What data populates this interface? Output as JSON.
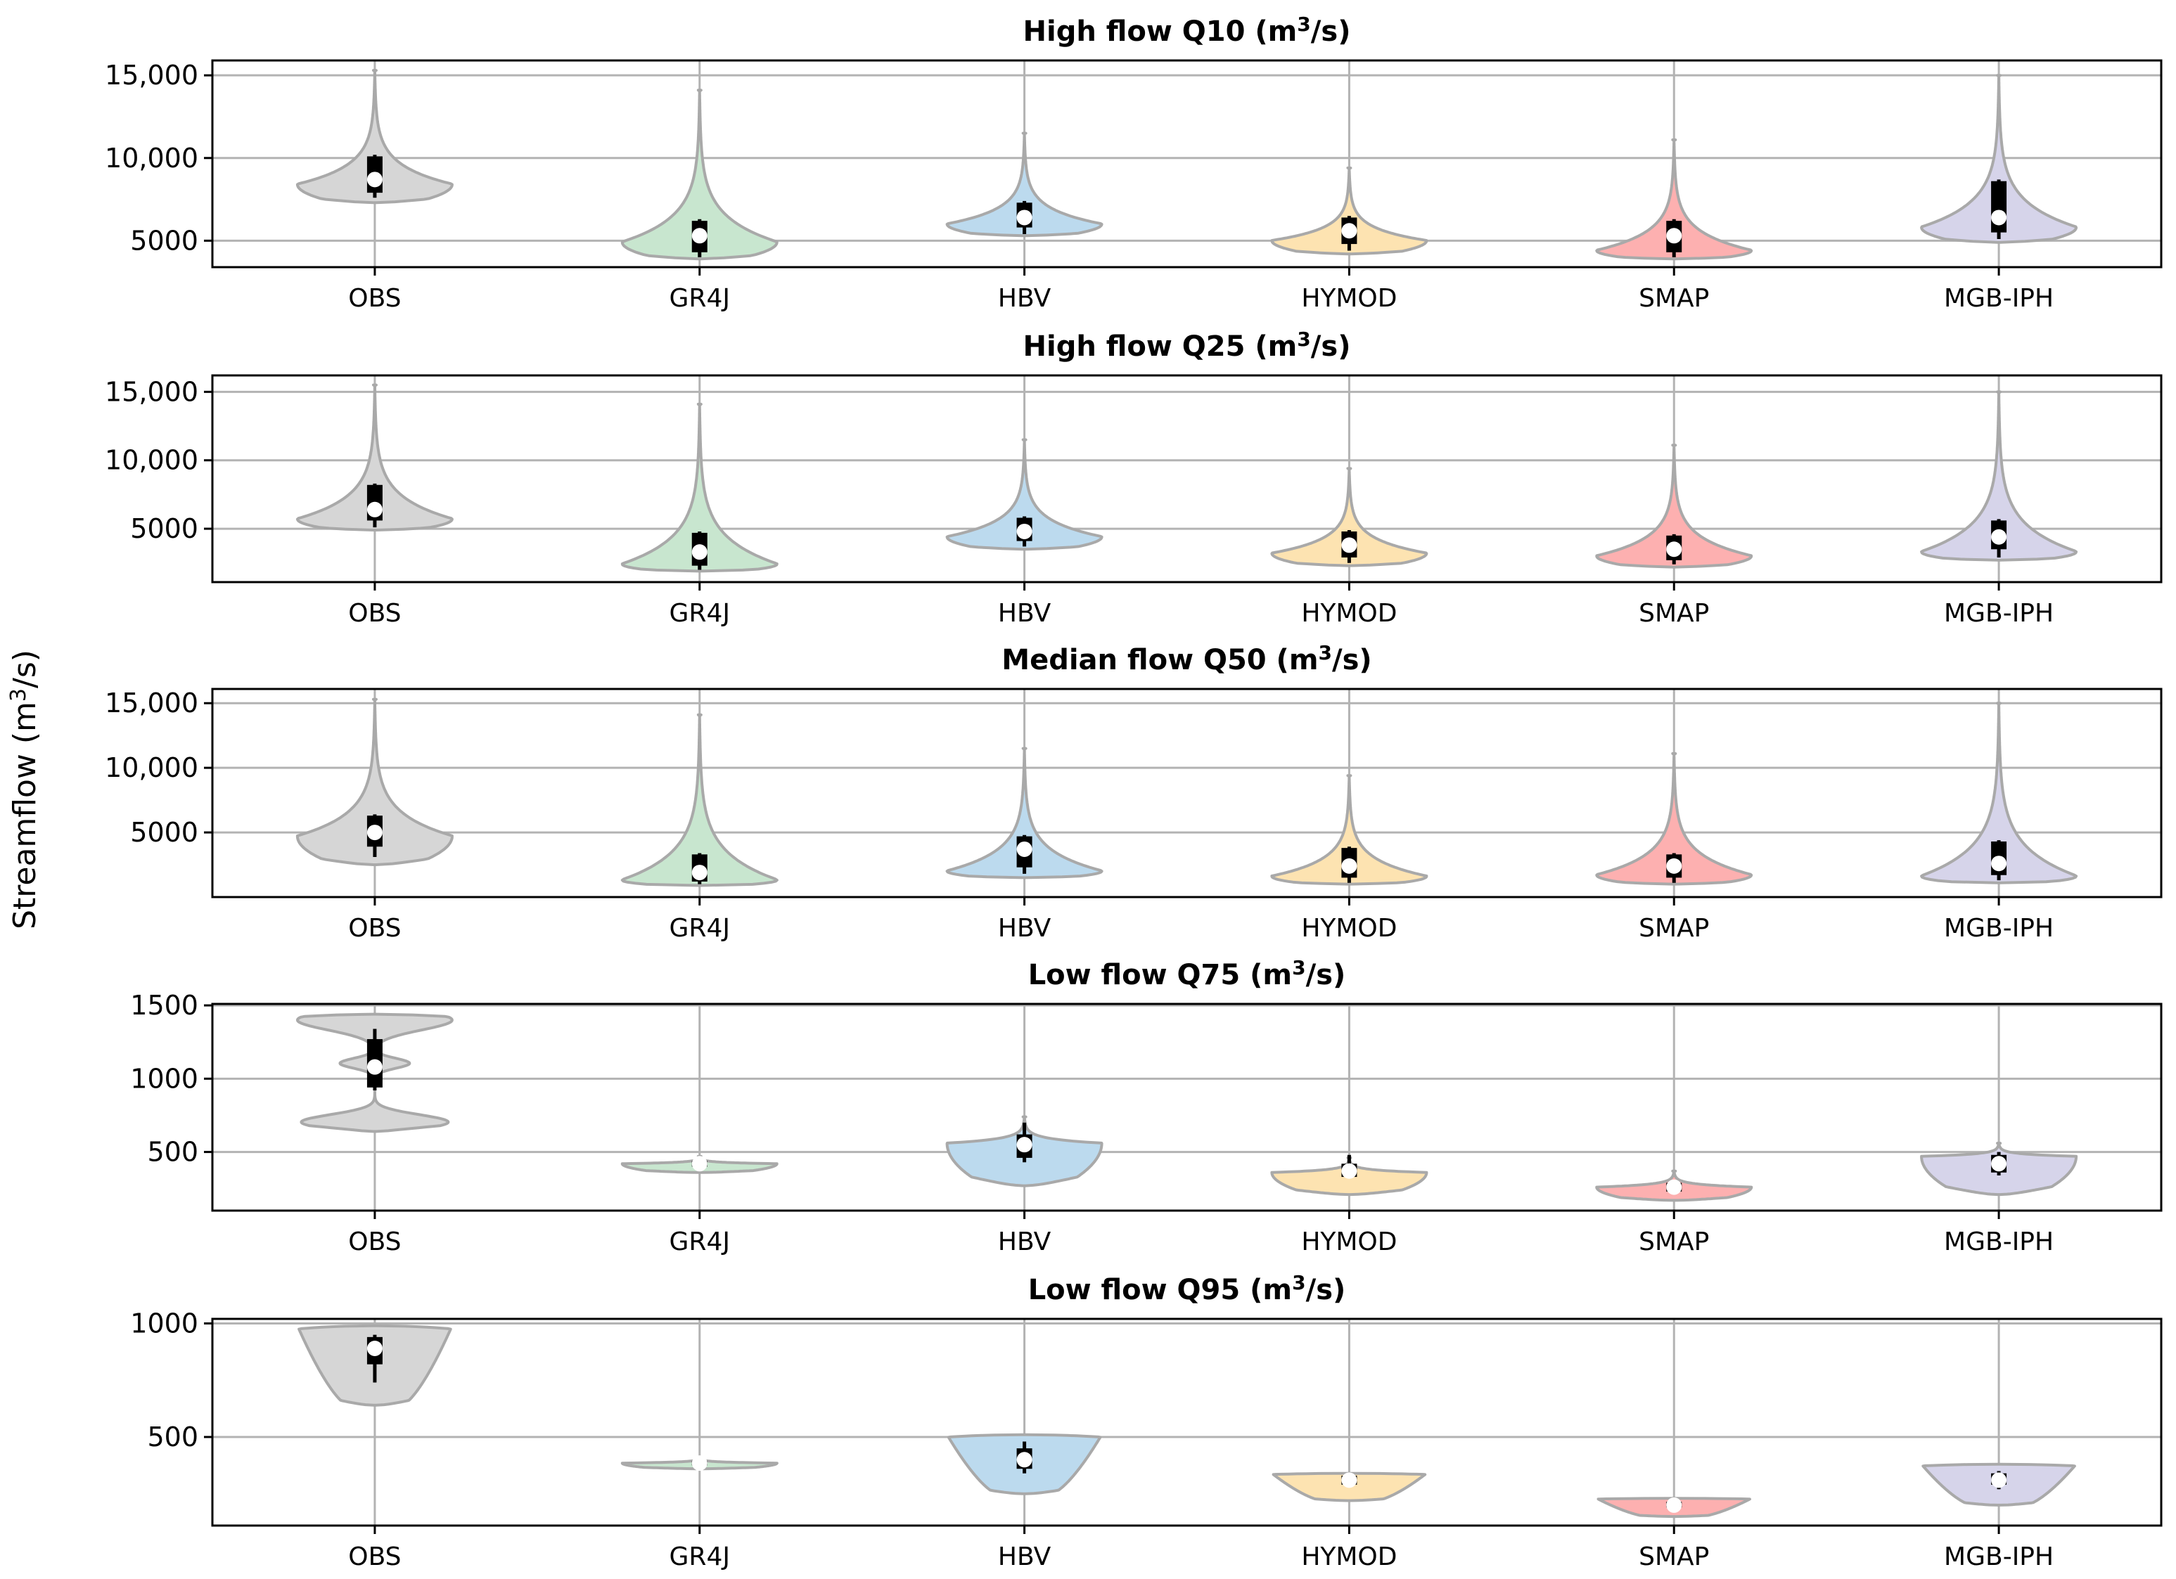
{
  "figure": {
    "ylabel_main": "Streamflow (m",
    "ylabel_sup": "3",
    "ylabel_tail": "/s)"
  },
  "colors": {
    "OBS": "#d6d6d6",
    "GR4J": "#c8e6cf",
    "HBV": "#bcdaee",
    "HYMOD": "#fde3b1",
    "SMAP": "#fdb0b0",
    "MGB-IPH": "#d6d4ea",
    "outline": "#a9a9a9",
    "box": "#000000",
    "median": "#ffffff",
    "grid": "#b3b3b3"
  },
  "chart_data": [
    {
      "type": "violin",
      "title": "High flow Q10 (m",
      "title_sup": "3",
      "title_tail": "/s)",
      "categories": [
        "OBS",
        "GR4J",
        "HBV",
        "HYMOD",
        "SMAP",
        "MGB-IPH"
      ],
      "yticks": [
        5000,
        10000,
        15000
      ],
      "ytick_labels": [
        "5000",
        "10,000",
        "15,000"
      ],
      "ylim": [
        3400,
        15900
      ],
      "grid": true,
      "series": [
        {
          "min": 7300,
          "q1": 7900,
          "median": 8700,
          "q3": 10100,
          "max": 15300,
          "wlo": 7600,
          "whi": 10200,
          "peak": 8400
        },
        {
          "min": 3900,
          "q1": 4300,
          "median": 5300,
          "q3": 6200,
          "max": 14100,
          "wlo": 4000,
          "whi": 6300,
          "peak": 4900
        },
        {
          "min": 5300,
          "q1": 5800,
          "median": 6400,
          "q3": 7300,
          "max": 11500,
          "wlo": 5400,
          "whi": 7400,
          "peak": 6000
        },
        {
          "min": 4200,
          "q1": 4800,
          "median": 5600,
          "q3": 6400,
          "max": 9400,
          "wlo": 4400,
          "whi": 6500,
          "peak": 5000
        },
        {
          "min": 3900,
          "q1": 4300,
          "median": 5300,
          "q3": 6200,
          "max": 11100,
          "wlo": 4000,
          "whi": 6300,
          "peak": 4400
        },
        {
          "min": 4900,
          "q1": 5500,
          "median": 6400,
          "q3": 8600,
          "max": 15000,
          "wlo": 5100,
          "whi": 8700,
          "peak": 5800
        }
      ]
    },
    {
      "type": "violin",
      "title": "High flow Q25 (m",
      "title_sup": "3",
      "title_tail": "/s)",
      "categories": [
        "OBS",
        "GR4J",
        "HBV",
        "HYMOD",
        "SMAP",
        "MGB-IPH"
      ],
      "yticks": [
        5000,
        10000,
        15000
      ],
      "ytick_labels": [
        "5000",
        "10,000",
        "15,000"
      ],
      "ylim": [
        1100,
        16200
      ],
      "grid": true,
      "series": [
        {
          "min": 4900,
          "q1": 5600,
          "median": 6400,
          "q3": 8200,
          "max": 15500,
          "wlo": 5100,
          "whi": 8300,
          "peak": 5700
        },
        {
          "min": 1900,
          "q1": 2300,
          "median": 3300,
          "q3": 4700,
          "max": 14100,
          "wlo": 2000,
          "whi": 4800,
          "peak": 2400
        },
        {
          "min": 3500,
          "q1": 4100,
          "median": 4800,
          "q3": 5800,
          "max": 11500,
          "wlo": 3700,
          "whi": 5900,
          "peak": 4400
        },
        {
          "min": 2300,
          "q1": 2900,
          "median": 3800,
          "q3": 4800,
          "max": 9400,
          "wlo": 2500,
          "whi": 4900,
          "peak": 3200
        },
        {
          "min": 2200,
          "q1": 2700,
          "median": 3500,
          "q3": 4500,
          "max": 11100,
          "wlo": 2400,
          "whi": 4600,
          "peak": 3000
        },
        {
          "min": 2700,
          "q1": 3500,
          "median": 4400,
          "q3": 5600,
          "max": 15000,
          "wlo": 2900,
          "whi": 5700,
          "peak": 3300
        }
      ]
    },
    {
      "type": "violin",
      "title": "Median flow Q50 (m",
      "title_sup": "3",
      "title_tail": "/s)",
      "categories": [
        "OBS",
        "GR4J",
        "HBV",
        "HYMOD",
        "SMAP",
        "MGB-IPH"
      ],
      "yticks": [
        5000,
        10000,
        15000
      ],
      "ytick_labels": [
        "5000",
        "10,000",
        "15,000"
      ],
      "ylim": [
        0,
        16100
      ],
      "grid": true,
      "series": [
        {
          "min": 2500,
          "q1": 3900,
          "median": 5000,
          "q3": 6300,
          "max": 15300,
          "wlo": 3100,
          "whi": 6400,
          "peak": 4700
        },
        {
          "min": 900,
          "q1": 1200,
          "median": 1900,
          "q3": 3300,
          "max": 14100,
          "wlo": 1000,
          "whi": 3400,
          "peak": 1300
        },
        {
          "min": 1500,
          "q1": 2300,
          "median": 3700,
          "q3": 4700,
          "max": 11500,
          "wlo": 1800,
          "whi": 4800,
          "peak": 2000
        },
        {
          "min": 1000,
          "q1": 1500,
          "median": 2400,
          "q3": 3800,
          "max": 9400,
          "wlo": 1100,
          "whi": 3900,
          "peak": 1600
        },
        {
          "min": 1000,
          "q1": 1500,
          "median": 2400,
          "q3": 3300,
          "max": 11100,
          "wlo": 1100,
          "whi": 3400,
          "peak": 1700
        },
        {
          "min": 1100,
          "q1": 1700,
          "median": 2600,
          "q3": 4300,
          "max": 15000,
          "wlo": 1300,
          "whi": 4400,
          "peak": 1600
        }
      ]
    },
    {
      "type": "violin",
      "title": "Low flow Q75 (m",
      "title_sup": "3",
      "title_tail": "/s)",
      "categories": [
        "OBS",
        "GR4J",
        "HBV",
        "HYMOD",
        "SMAP",
        "MGB-IPH"
      ],
      "yticks": [
        500,
        1000,
        1500
      ],
      "ytick_labels": [
        "500",
        "1000",
        "1500"
      ],
      "ylim": [
        100,
        1510
      ],
      "grid": true,
      "series": [
        {
          "min": 640,
          "q1": 940,
          "median": 1080,
          "q3": 1270,
          "max": 1440,
          "wlo": 920,
          "whi": 1340,
          "shape": "obs75"
        },
        {
          "min": 360,
          "q1": 400,
          "median": 420,
          "q3": 440,
          "max": 470,
          "wlo": 395,
          "whi": 445,
          "peak": 420
        },
        {
          "min": 270,
          "q1": 460,
          "median": 550,
          "q3": 620,
          "max": 740,
          "wlo": 430,
          "whi": 700,
          "peak": 560
        },
        {
          "min": 210,
          "q1": 330,
          "median": 370,
          "q3": 420,
          "max": 460,
          "wlo": 320,
          "whi": 480,
          "peak": 360
        },
        {
          "min": 170,
          "q1": 230,
          "median": 260,
          "q3": 290,
          "max": 370,
          "wlo": 220,
          "whi": 300,
          "peak": 260
        },
        {
          "min": 210,
          "q1": 360,
          "median": 420,
          "q3": 480,
          "max": 560,
          "wlo": 340,
          "whi": 500,
          "peak": 470
        }
      ]
    },
    {
      "type": "violin",
      "title": "Low flow Q95 (m",
      "title_sup": "3",
      "title_tail": "/s)",
      "categories": [
        "OBS",
        "GR4J",
        "HBV",
        "HYMOD",
        "SMAP",
        "MGB-IPH"
      ],
      "yticks": [
        500,
        1000
      ],
      "ytick_labels": [
        "500",
        "1000"
      ],
      "ylim": [
        110,
        1020
      ],
      "grid": true,
      "series": [
        {
          "min": 640,
          "q1": 820,
          "median": 890,
          "q3": 940,
          "max": 990,
          "wlo": 740,
          "whi": 950,
          "shape": "top"
        },
        {
          "min": 360,
          "q1": 375,
          "median": 385,
          "q3": 395,
          "max": 410,
          "wlo": 370,
          "whi": 400,
          "peak": 385
        },
        {
          "min": 250,
          "q1": 360,
          "median": 400,
          "q3": 450,
          "max": 510,
          "wlo": 340,
          "whi": 480,
          "shape": "top"
        },
        {
          "min": 220,
          "q1": 290,
          "median": 310,
          "q3": 330,
          "max": 340,
          "wlo": 280,
          "whi": 340,
          "shape": "top"
        },
        {
          "min": 150,
          "q1": 190,
          "median": 200,
          "q3": 215,
          "max": 230,
          "wlo": 185,
          "whi": 220,
          "shape": "top"
        },
        {
          "min": 200,
          "q1": 290,
          "median": 310,
          "q3": 340,
          "max": 380,
          "wlo": 270,
          "whi": 350,
          "shape": "top"
        }
      ]
    }
  ]
}
